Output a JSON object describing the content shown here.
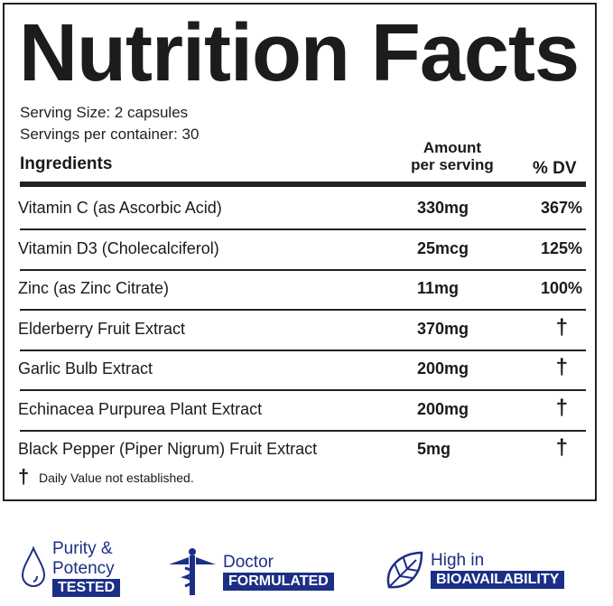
{
  "title": "Nutrition Facts",
  "serving_size": "Serving Size: 2 capsules",
  "servings_per_container": "Servings per container: 30",
  "headers": {
    "ingredients": "Ingredients",
    "amount_line1": "Amount",
    "amount_line2": "per serving",
    "dv": "% DV"
  },
  "rows": [
    {
      "name": "Vitamin C (as Ascorbic Acid)",
      "amount": "330mg",
      "dv": "367%"
    },
    {
      "name": "Vitamin D3 (Cholecalciferol)",
      "amount": "25mcg",
      "dv": "125%"
    },
    {
      "name": "Zinc (as Zinc Citrate)",
      "amount": "11mg",
      "dv": "100%"
    },
    {
      "name": "Elderberry Fruit Extract",
      "amount": "370mg",
      "dv": "†"
    },
    {
      "name": "Garlic Bulb Extract",
      "amount": "200mg",
      "dv": "†"
    },
    {
      "name": "Echinacea Purpurea Plant Extract",
      "amount": "200mg",
      "dv": "†"
    },
    {
      "name": "Black Pepper (Piper Nigrum) Fruit Extract",
      "amount": "5mg",
      "dv": "†"
    }
  ],
  "footnote": {
    "symbol": "†",
    "text": "Daily Value not established."
  },
  "badges": [
    {
      "icon": "droplet-icon",
      "line1": "Purity &",
      "line2": "Potency",
      "box": "TESTED"
    },
    {
      "icon": "caduceus-icon",
      "line1": "Doctor",
      "box": "FORMULATED"
    },
    {
      "icon": "leaf-icon",
      "line1": "High in",
      "box": "BIOAVAILABILITY"
    }
  ],
  "colors": {
    "brand_blue": "#1c2f86",
    "text": "#1a1a1a"
  }
}
